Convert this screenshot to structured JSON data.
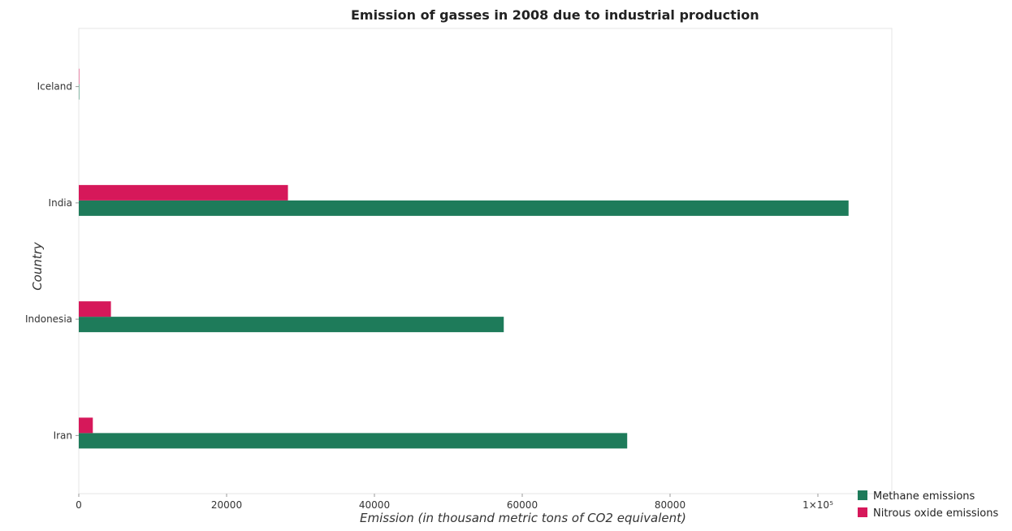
{
  "chart_data": {
    "type": "bar",
    "orientation": "horizontal",
    "title": "Emission of gasses in 2008 due to industrial production",
    "xlabel": "Emission (in thousand metric tons of CO2 equivalent)",
    "ylabel": "Country",
    "categories": [
      "Iceland",
      "India",
      "Indonesia",
      "Iran"
    ],
    "series": [
      {
        "name": "Methane emissions",
        "color": "#1e7b5a",
        "values": [
          4,
          104150,
          57500,
          74200
        ]
      },
      {
        "name": "Nitrous oxide emissions",
        "color": "#d6185a",
        "values": [
          10,
          28300,
          4350,
          1900
        ]
      }
    ],
    "xlim": [
      0,
      110000
    ],
    "xticks": [
      0,
      20000,
      40000,
      60000,
      80000,
      100000
    ],
    "xtick_labels": [
      "0",
      "20000",
      "40000",
      "60000",
      "80000",
      "1×10⁵"
    ],
    "grid": false,
    "legend_position": "bottom-right"
  }
}
